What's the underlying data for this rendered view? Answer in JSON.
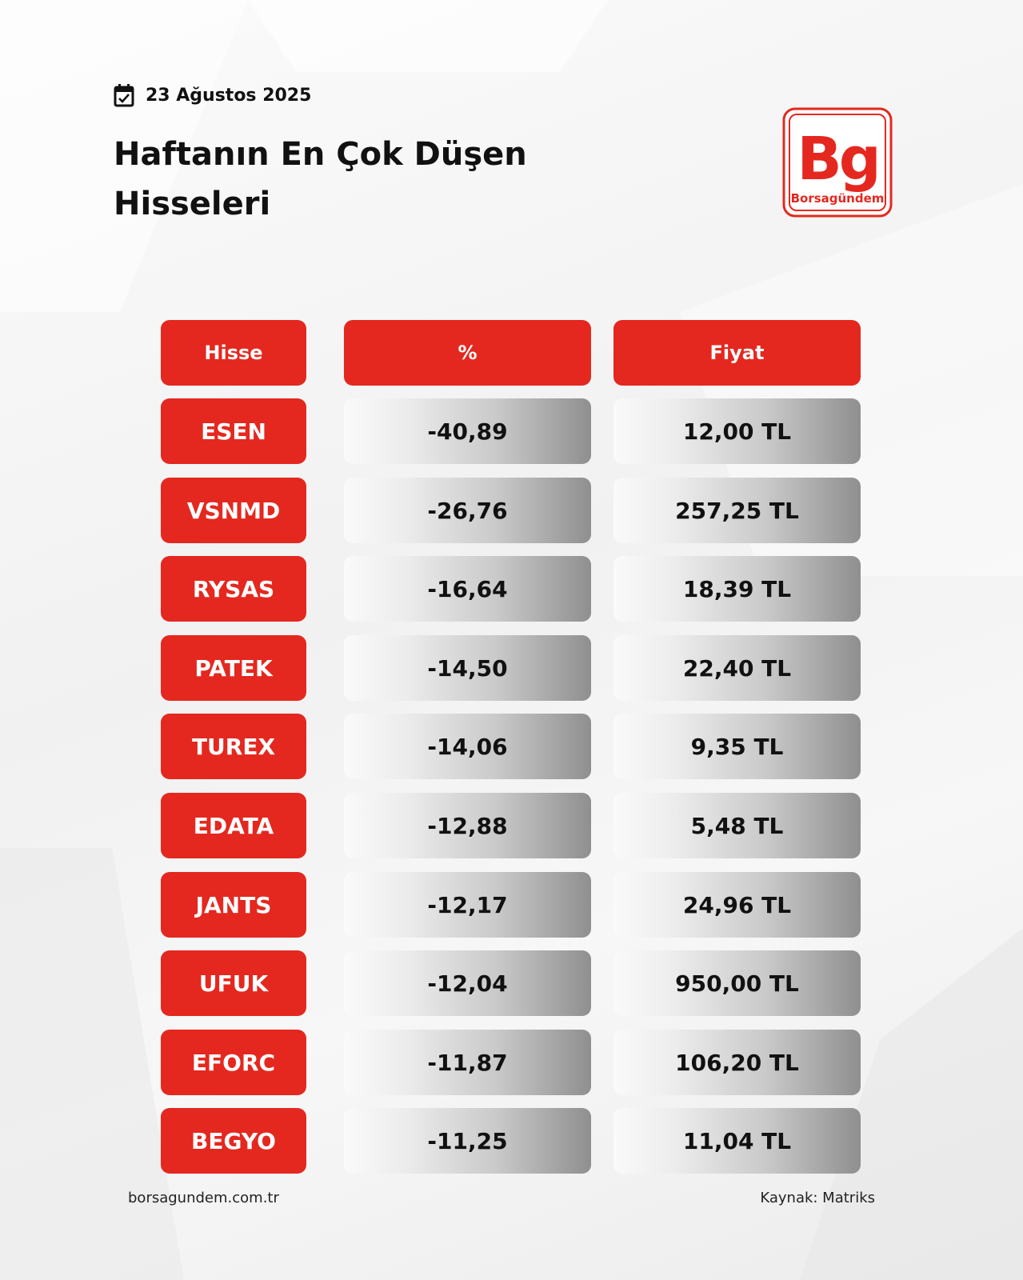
{
  "header": {
    "date": "23 Ağustos 2025",
    "title_line1": "Haftanın En Çok Düşen",
    "title_line2": "Hisseleri"
  },
  "logo": {
    "mark": "Bg",
    "name": "Borsagündem",
    "color": "#e4281f"
  },
  "table": {
    "columns": [
      "Hisse",
      "%",
      "Fiyat"
    ],
    "rows": [
      {
        "symbol": "ESEN",
        "change": "-40,89",
        "price": "12,00 TL"
      },
      {
        "symbol": "VSNMD",
        "change": "-26,76",
        "price": "257,25 TL"
      },
      {
        "symbol": "RYSAS",
        "change": "-16,64",
        "price": "18,39 TL"
      },
      {
        "symbol": "PATEK",
        "change": "-14,50",
        "price": "22,40 TL"
      },
      {
        "symbol": "TUREX",
        "change": "-14,06",
        "price": "9,35 TL"
      },
      {
        "symbol": "EDATA",
        "change": "-12,88",
        "price": "5,48 TL"
      },
      {
        "symbol": "JANTS",
        "change": "-12,17",
        "price": "24,96 TL"
      },
      {
        "symbol": "UFUK",
        "change": "-12,04",
        "price": "950,00 TL"
      },
      {
        "symbol": "EFORC",
        "change": "-11,87",
        "price": "106,20 TL"
      },
      {
        "symbol": "BEGYO",
        "change": "-11,25",
        "price": "11,04 TL"
      }
    ]
  },
  "footer": {
    "website": "borsagundem.com.tr",
    "source": "Kaynak: Matriks"
  }
}
